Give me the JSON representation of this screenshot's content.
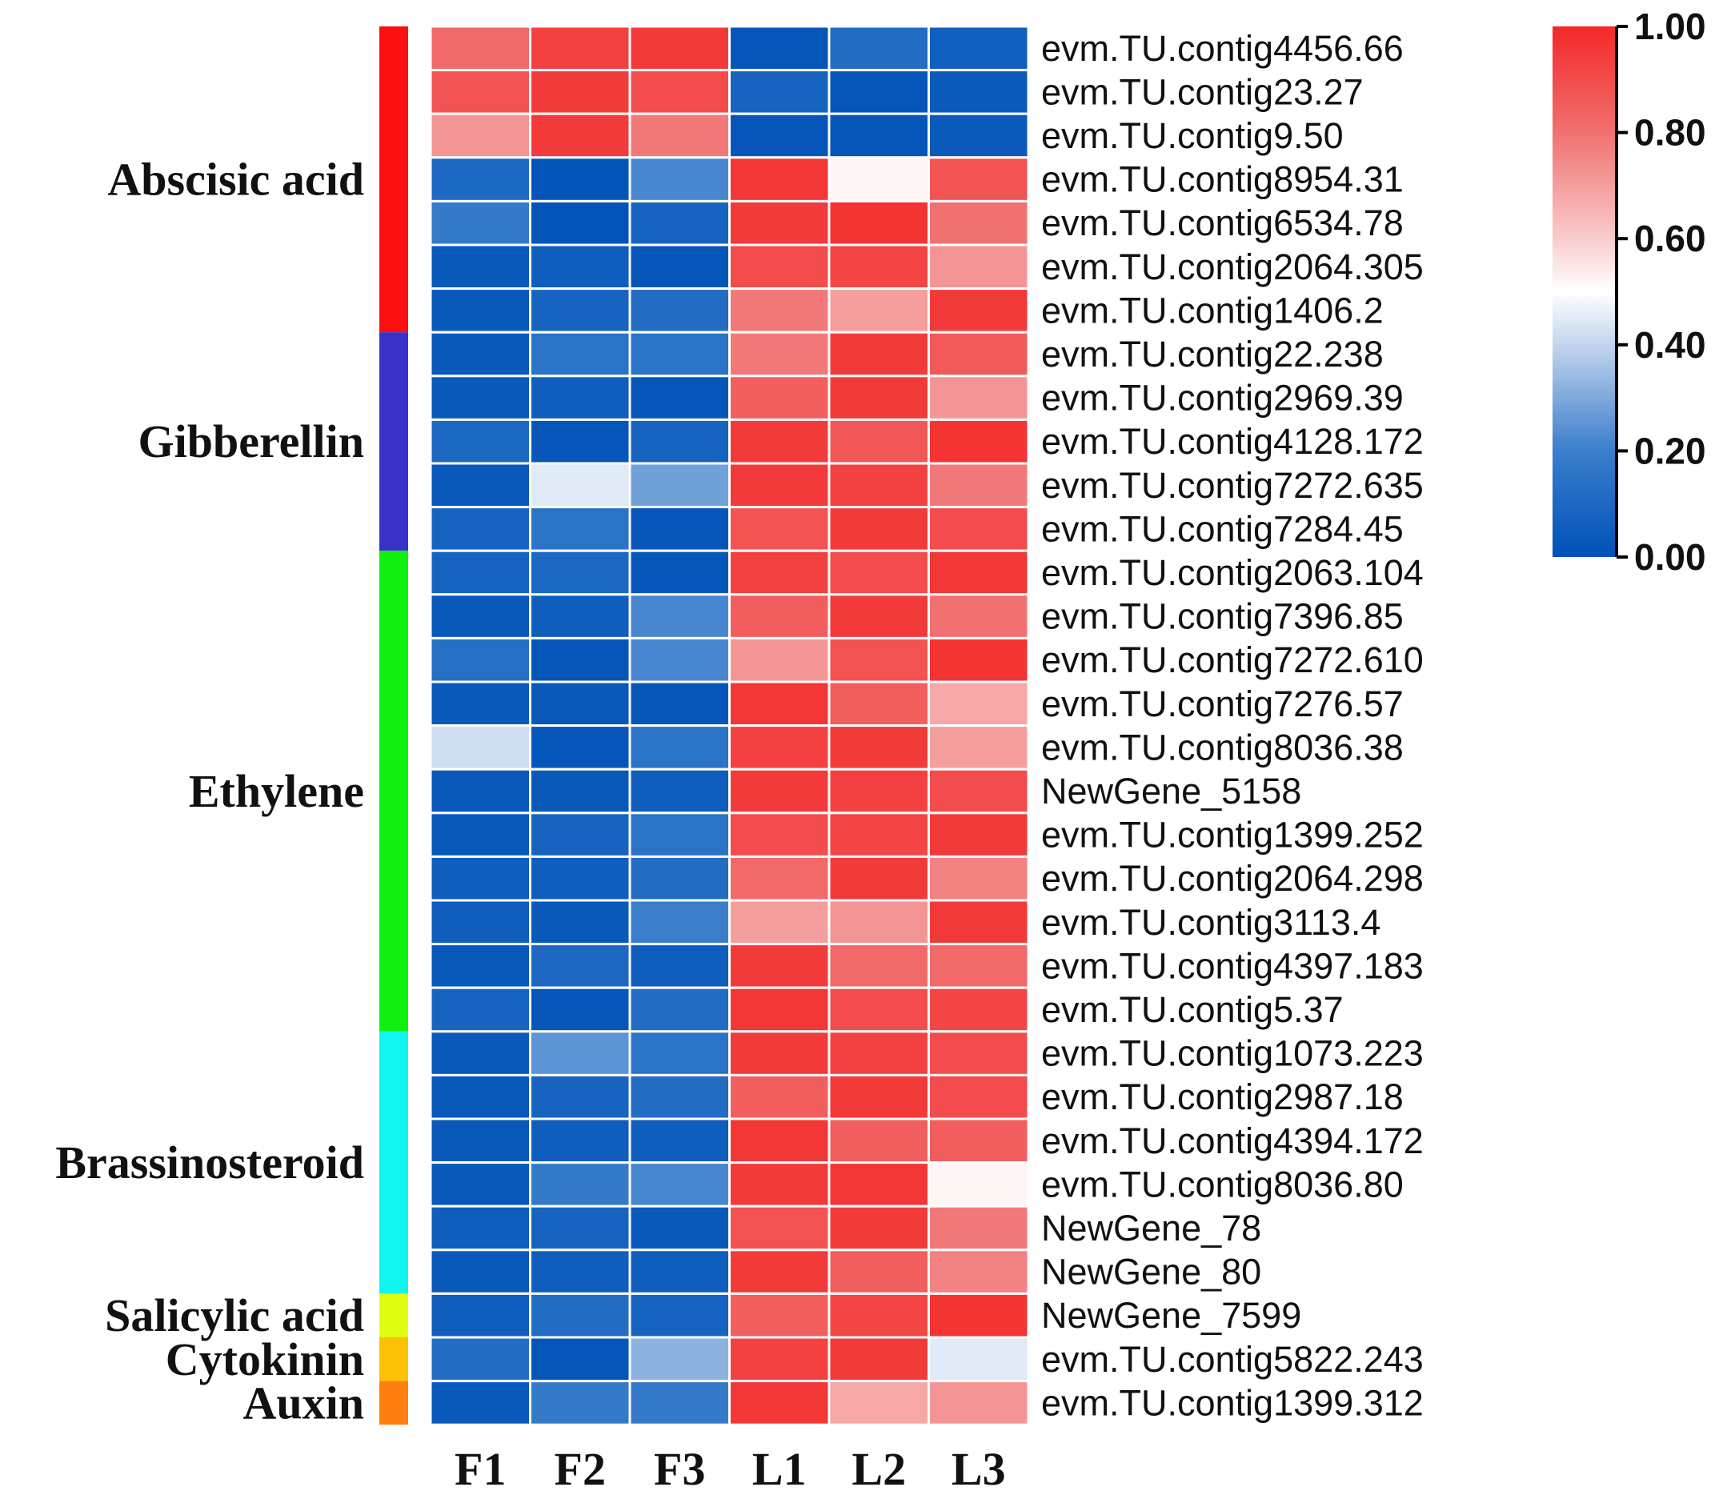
{
  "chart_data": {
    "type": "heatmap",
    "columns": [
      "F1",
      "F2",
      "F3",
      "L1",
      "L2",
      "L3"
    ],
    "rows": [
      "evm.TU.contig4456.66",
      "evm.TU.contig23.27",
      "evm.TU.contig9.50",
      "evm.TU.contig8954.31",
      "evm.TU.contig6534.78",
      "evm.TU.contig2064.305",
      "evm.TU.contig1406.2",
      "evm.TU.contig22.238",
      "evm.TU.contig2969.39",
      "evm.TU.contig4128.172",
      "evm.TU.contig7272.635",
      "evm.TU.contig7284.45",
      "evm.TU.contig2063.104",
      "evm.TU.contig7396.85",
      "evm.TU.contig7272.610",
      "evm.TU.contig7276.57",
      "evm.TU.contig8036.38",
      "NewGene_5158",
      "evm.TU.contig1399.252",
      "evm.TU.contig2064.298",
      "evm.TU.contig3113.4",
      "evm.TU.contig4397.183",
      "evm.TU.contig5.37",
      "evm.TU.contig1073.223",
      "evm.TU.contig2987.18",
      "evm.TU.contig4394.172",
      "evm.TU.contig8036.80",
      "NewGene_78",
      "NewGene_80",
      "NewGene_7599",
      "evm.TU.contig5822.243",
      "evm.TU.contig1399.312"
    ],
    "values": [
      [
        0.82,
        0.93,
        0.95,
        0.02,
        0.12,
        0.06
      ],
      [
        0.88,
        0.95,
        0.9,
        0.08,
        0.02,
        0.04
      ],
      [
        0.72,
        0.95,
        0.78,
        0.02,
        0.02,
        0.04
      ],
      [
        0.1,
        0.01,
        0.22,
        0.96,
        0.52,
        0.88
      ],
      [
        0.18,
        0.01,
        0.08,
        0.95,
        0.97,
        0.8
      ],
      [
        0.03,
        0.05,
        0.02,
        0.9,
        0.92,
        0.72
      ],
      [
        0.03,
        0.08,
        0.12,
        0.78,
        0.7,
        0.95
      ],
      [
        0.03,
        0.15,
        0.15,
        0.78,
        0.95,
        0.86
      ],
      [
        0.03,
        0.05,
        0.02,
        0.85,
        0.95,
        0.72
      ],
      [
        0.1,
        0.02,
        0.08,
        0.95,
        0.87,
        0.97
      ],
      [
        0.03,
        0.45,
        0.28,
        0.95,
        0.93,
        0.78
      ],
      [
        0.08,
        0.15,
        0.02,
        0.88,
        0.95,
        0.9
      ],
      [
        0.08,
        0.1,
        0.02,
        0.93,
        0.9,
        0.96
      ],
      [
        0.03,
        0.05,
        0.22,
        0.85,
        0.95,
        0.8
      ],
      [
        0.13,
        0.02,
        0.22,
        0.72,
        0.88,
        0.97
      ],
      [
        0.03,
        0.03,
        0.02,
        0.96,
        0.85,
        0.68
      ],
      [
        0.42,
        0.02,
        0.15,
        0.93,
        0.95,
        0.7
      ],
      [
        0.03,
        0.03,
        0.05,
        0.95,
        0.93,
        0.9
      ],
      [
        0.03,
        0.08,
        0.15,
        0.9,
        0.92,
        0.95
      ],
      [
        0.05,
        0.05,
        0.12,
        0.82,
        0.95,
        0.76
      ],
      [
        0.05,
        0.03,
        0.2,
        0.7,
        0.72,
        0.95
      ],
      [
        0.03,
        0.1,
        0.05,
        0.95,
        0.82,
        0.82
      ],
      [
        0.08,
        0.02,
        0.12,
        0.96,
        0.9,
        0.92
      ],
      [
        0.03,
        0.25,
        0.15,
        0.95,
        0.93,
        0.9
      ],
      [
        0.03,
        0.08,
        0.12,
        0.85,
        0.95,
        0.9
      ],
      [
        0.03,
        0.05,
        0.05,
        0.96,
        0.85,
        0.85
      ],
      [
        0.03,
        0.18,
        0.22,
        0.95,
        0.96,
        0.52
      ],
      [
        0.05,
        0.08,
        0.03,
        0.88,
        0.95,
        0.78
      ],
      [
        0.03,
        0.05,
        0.05,
        0.95,
        0.85,
        0.76
      ],
      [
        0.05,
        0.12,
        0.08,
        0.85,
        0.92,
        0.97
      ],
      [
        0.12,
        0.02,
        0.32,
        0.93,
        0.95,
        0.45
      ],
      [
        0.03,
        0.18,
        0.18,
        0.96,
        0.68,
        0.72
      ]
    ],
    "groups": [
      {
        "name": "Abscisic acid",
        "start": 0,
        "count": 7,
        "color": "#fa1010"
      },
      {
        "name": "Gibberellin",
        "start": 7,
        "count": 5,
        "color": "#3a32c8"
      },
      {
        "name": "Ethylene",
        "start": 12,
        "count": 11,
        "color": "#10f010"
      },
      {
        "name": "Brassinosteroid",
        "start": 23,
        "count": 6,
        "color": "#10f5f0"
      },
      {
        "name": "Salicylic acid",
        "start": 29,
        "count": 1,
        "color": "#e0ff10"
      },
      {
        "name": "Cytokinin",
        "start": 30,
        "count": 1,
        "color": "#ffc008"
      },
      {
        "name": "Auxin",
        "start": 31,
        "count": 1,
        "color": "#ff8010"
      }
    ],
    "colorscale": {
      "range": [
        0,
        1
      ],
      "stops": [
        {
          "value": 0.0,
          "color": "#0052b8"
        },
        {
          "value": 0.2,
          "color": "#3a7ecb"
        },
        {
          "value": 0.4,
          "color": "#c3d5ee"
        },
        {
          "value": 0.5,
          "color": "#ffffff"
        },
        {
          "value": 0.6,
          "color": "#f9cccc"
        },
        {
          "value": 0.8,
          "color": "#f17070"
        },
        {
          "value": 1.0,
          "color": "#f42828"
        }
      ]
    },
    "legend": {
      "position": "top-right",
      "ticks": [
        "0.00",
        "0.20",
        "0.40",
        "0.60",
        "0.80",
        "1.00"
      ]
    }
  }
}
